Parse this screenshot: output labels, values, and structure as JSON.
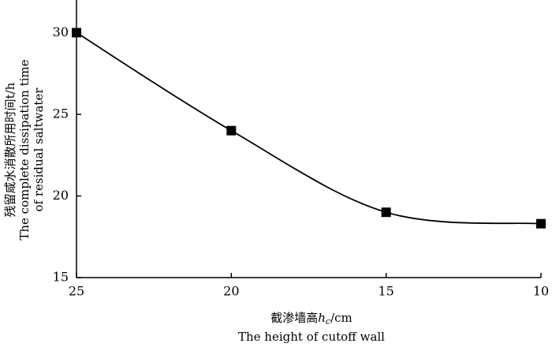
{
  "chart_data": {
    "type": "line",
    "x_label": [
      "截渗墙高",
      "h",
      "c",
      "/cm"
    ],
    "x_label_en": "The height of cutoff wall",
    "y_label": [
      "残留咸水消散所用时间t/h",
      "The complete dissipation time",
      "of residual saltwater"
    ],
    "x": [
      25,
      20,
      15,
      10
    ],
    "series": [
      {
        "color": "#000000",
        "values": [
          30,
          24,
          19,
          18.3
        ]
      }
    ],
    "xlim": [
      25,
      10
    ],
    "xticks": [
      25,
      20,
      15,
      10
    ],
    "ylim": [
      15,
      32
    ],
    "yticks": [
      15,
      20,
      25,
      30
    ],
    "grid": false,
    "marker": "square",
    "smooth": true
  }
}
